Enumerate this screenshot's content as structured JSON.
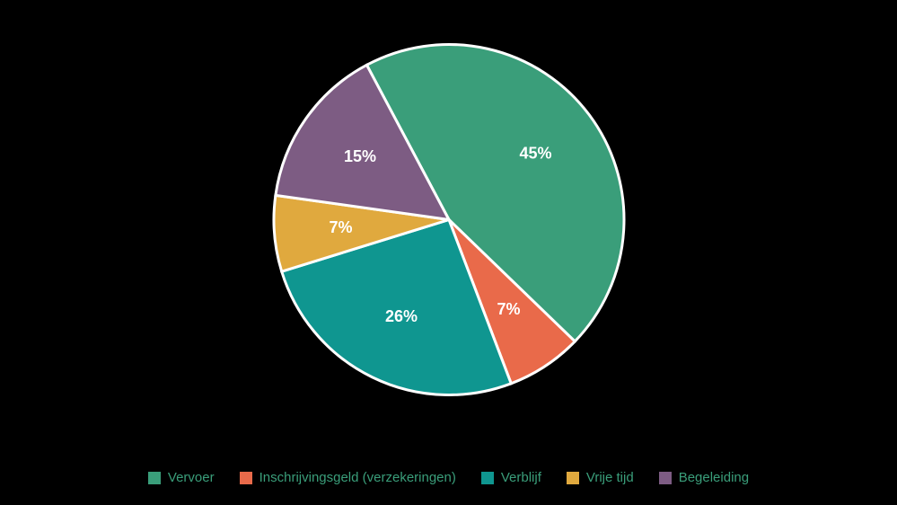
{
  "chart": {
    "type": "pie",
    "background_color": "#000000",
    "outer_radius": 195,
    "inner_stroke_color": "#ffffff",
    "inner_stroke_width": 3,
    "label_fontsize": 18,
    "label_color": "#ffffff",
    "label_radius_factor": 0.62,
    "slices": [
      {
        "key": "vervoer",
        "value": 45,
        "label": "45%",
        "color": "#3a9e7a"
      },
      {
        "key": "inschrijving",
        "value": 7,
        "label": "7%",
        "color": "#e96a4a"
      },
      {
        "key": "verblijf",
        "value": 26,
        "label": "26%",
        "color": "#0f9690"
      },
      {
        "key": "vrijetijd",
        "value": 7,
        "label": "7%",
        "color": "#e0a93e"
      },
      {
        "key": "begeleiding",
        "value": 15,
        "label": "15%",
        "color": "#7d5c83"
      }
    ],
    "start_angle_deg": -28
  },
  "legend": {
    "text_color": "#3a9e7a",
    "fontsize": 15,
    "items": [
      {
        "label": "Vervoer",
        "color": "#3a9e7a"
      },
      {
        "label": "Inschrijvingsgeld (verzekeringen)",
        "color": "#e96a4a"
      },
      {
        "label": "Verblijf",
        "color": "#0f9690"
      },
      {
        "label": "Vrije tijd",
        "color": "#e0a93e"
      },
      {
        "label": "Begeleiding",
        "color": "#7d5c83"
      }
    ]
  }
}
